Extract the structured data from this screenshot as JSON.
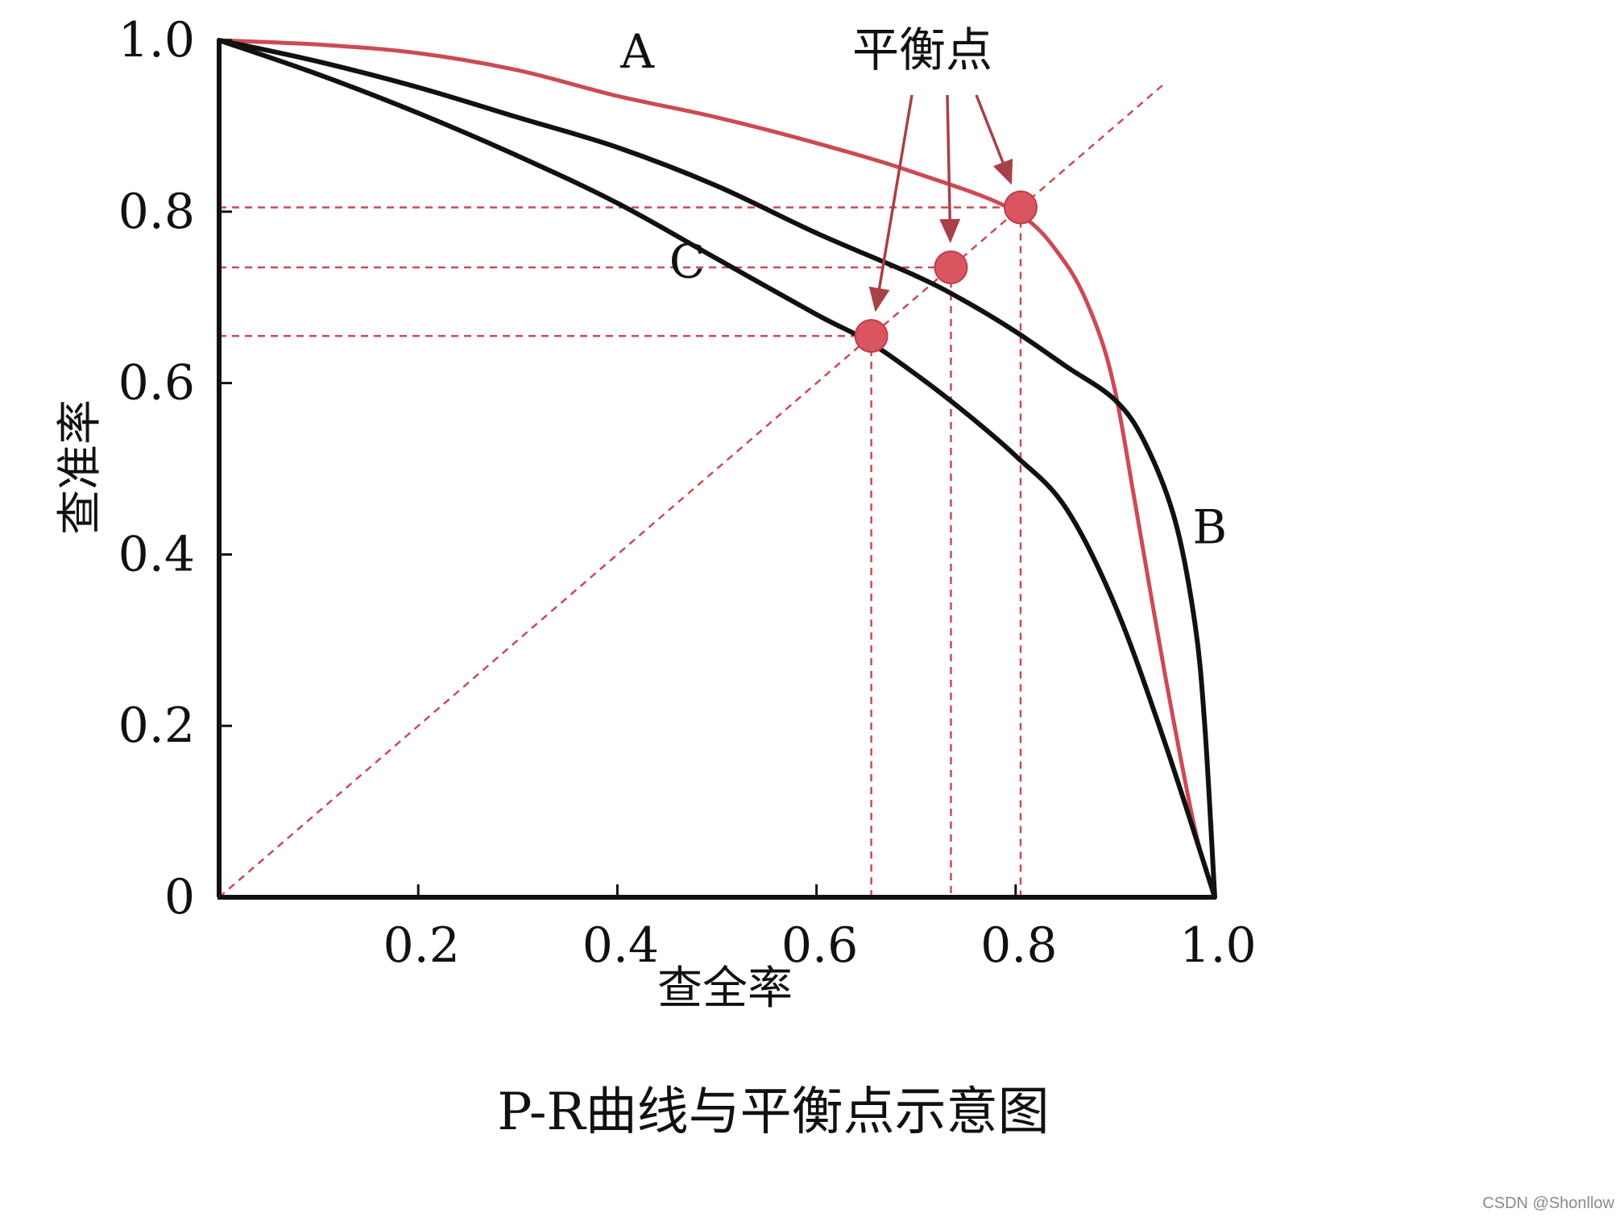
{
  "figure": {
    "title": "P-R曲线与平衡点示意图",
    "watermark": "CSDN @Shonllow"
  },
  "chart_data": {
    "type": "line",
    "xlabel": "查全率",
    "ylabel": "查准率",
    "xlim": [
      0,
      1
    ],
    "ylim": [
      0,
      1
    ],
    "x_ticks": [
      {
        "value": 0.2,
        "label": "0.2"
      },
      {
        "value": 0.4,
        "label": "0.4"
      },
      {
        "value": 0.6,
        "label": "0.6"
      },
      {
        "value": 0.8,
        "label": "0.8"
      },
      {
        "value": 1.0,
        "label": "1.0"
      }
    ],
    "y_ticks": [
      {
        "value": 0,
        "label": "0"
      },
      {
        "value": 0.2,
        "label": "0.2"
      },
      {
        "value": 0.4,
        "label": "0.4"
      },
      {
        "value": 0.6,
        "label": "0.6"
      },
      {
        "value": 0.8,
        "label": "0.8"
      },
      {
        "value": 1.0,
        "label": "1.0"
      }
    ],
    "grid": false,
    "series": [
      {
        "name": "A",
        "color": "#cc4a55",
        "x": [
          0,
          0.1,
          0.2,
          0.3,
          0.4,
          0.5,
          0.6,
          0.7,
          0.8,
          0.85,
          0.88,
          0.9,
          0.92,
          0.95,
          0.98,
          1.0
        ],
        "y": [
          1.0,
          0.995,
          0.985,
          0.965,
          0.935,
          0.91,
          0.88,
          0.845,
          0.8,
          0.74,
          0.67,
          0.59,
          0.46,
          0.26,
          0.08,
          0
        ]
      },
      {
        "name": "B",
        "color": "#111111",
        "x": [
          0,
          0.1,
          0.2,
          0.3,
          0.4,
          0.5,
          0.6,
          0.7,
          0.75,
          0.8,
          0.85,
          0.9,
          0.93,
          0.96,
          0.98,
          0.99,
          1.0
        ],
        "y": [
          1.0,
          0.975,
          0.945,
          0.91,
          0.875,
          0.83,
          0.775,
          0.725,
          0.695,
          0.66,
          0.62,
          0.58,
          0.53,
          0.44,
          0.32,
          0.2,
          0
        ]
      },
      {
        "name": "C",
        "color": "#111111",
        "x": [
          0,
          0.1,
          0.2,
          0.3,
          0.4,
          0.5,
          0.6,
          0.65,
          0.7,
          0.75,
          0.8,
          0.85,
          0.9,
          0.95,
          1.0
        ],
        "y": [
          1.0,
          0.96,
          0.915,
          0.865,
          0.81,
          0.745,
          0.68,
          0.65,
          0.61,
          0.565,
          0.515,
          0.455,
          0.34,
          0.18,
          0
        ]
      }
    ],
    "reference_line": {
      "x": [
        0,
        0.95
      ],
      "y": [
        0,
        0.95
      ],
      "style": "dashed",
      "color": "#cc4a55"
    },
    "break_even_points": [
      {
        "curve": "A",
        "x": 0.805,
        "y": 0.805
      },
      {
        "curve": "B",
        "x": 0.735,
        "y": 0.735
      },
      {
        "curve": "C",
        "x": 0.655,
        "y": 0.655
      }
    ],
    "annotation": {
      "text": "平衡点",
      "color": "#a84048"
    }
  }
}
